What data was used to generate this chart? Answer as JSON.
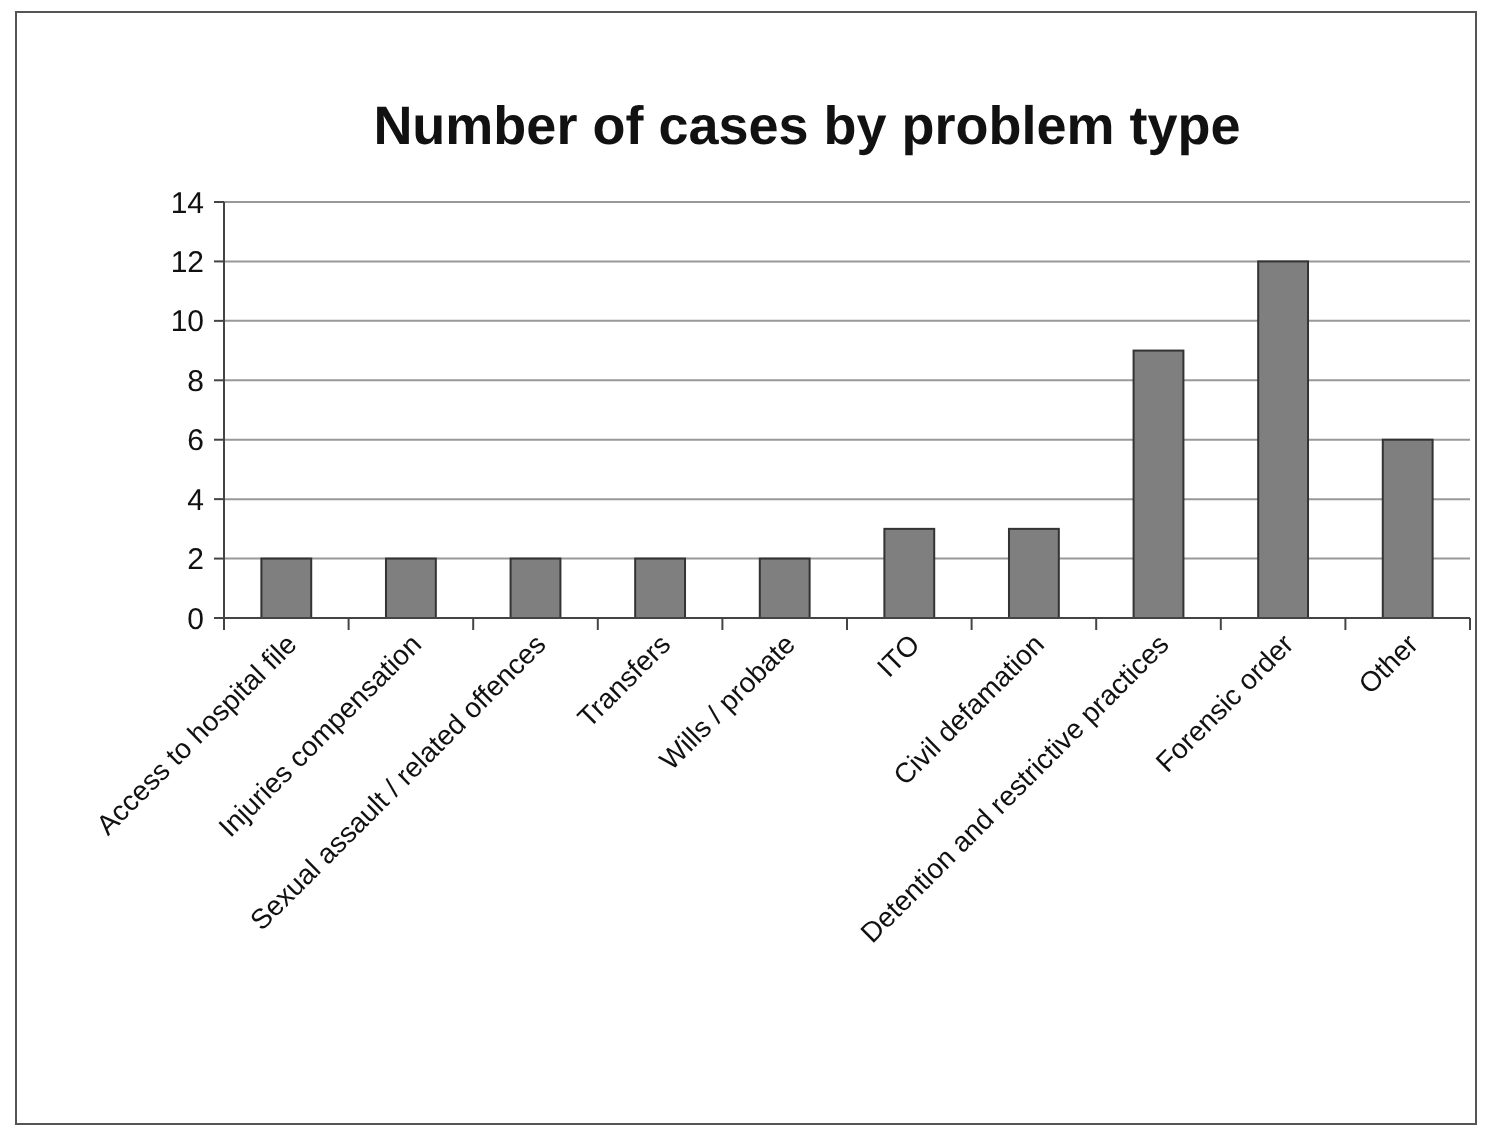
{
  "chart_data": {
    "type": "bar",
    "title": "Number of cases by problem type",
    "categories": [
      "Access to hospital file",
      "Injuries compensation",
      "Sexual assault / related offences",
      "Transfers",
      "Wills / probate",
      "ITO",
      "Civil defamation",
      "Detention and restrictive practices",
      "Forensic order",
      "Other"
    ],
    "values": [
      2,
      2,
      2,
      2,
      2,
      3,
      3,
      9,
      12,
      6
    ],
    "color": "#7f7f7f",
    "ylim": [
      0,
      14
    ],
    "yticks": [
      0,
      2,
      4,
      6,
      8,
      10,
      12,
      14
    ],
    "grid": "y"
  }
}
